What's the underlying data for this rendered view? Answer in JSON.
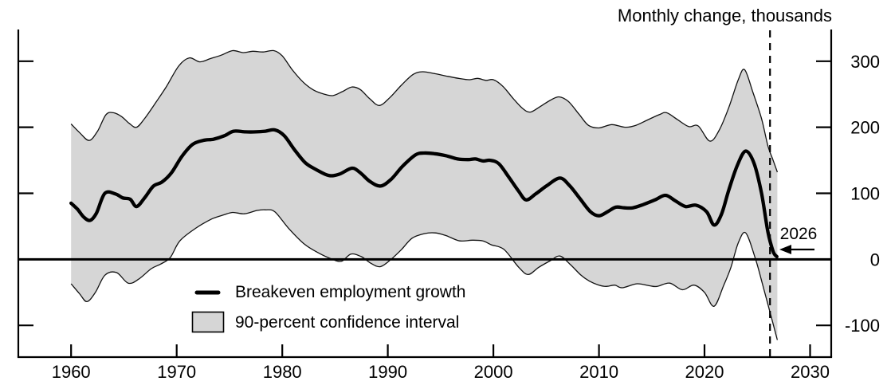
{
  "title": "Monthly change, thousands",
  "legend": {
    "line_label": "Breakeven employment growth",
    "band_label": "90-percent confidence interval"
  },
  "annotation": {
    "label": "2026",
    "arrow_tip_year": 2026.95,
    "arrow_y_value": 15
  },
  "colors": {
    "background": "#ffffff",
    "band_fill": "#d6d6d6",
    "band_edge": "#111111",
    "line": "#000000",
    "axis": "#000000"
  },
  "chart_data": {
    "type": "line",
    "title": "Monthly change, thousands",
    "xlabel": "",
    "ylabel": "Monthly change, thousands",
    "x_ticks": [
      1960,
      1970,
      1980,
      1990,
      2000,
      2010,
      2020,
      2030
    ],
    "y_ticks": [
      300,
      200,
      100,
      0,
      -100
    ],
    "x_range": [
      1955,
      2032
    ],
    "y_range": [
      -148,
      348
    ],
    "grid": false,
    "zero_line": true,
    "dashed_vline_year": 2026.2,
    "legend_position": "inside-bottom-left",
    "series": [
      {
        "name": "Breakeven employment growth",
        "role": "center-line",
        "points": [
          [
            1960.0,
            85
          ],
          [
            1960.6,
            76
          ],
          [
            1961.2,
            64
          ],
          [
            1961.8,
            59
          ],
          [
            1962.4,
            70
          ],
          [
            1963.2,
            100
          ],
          [
            1964.2,
            99
          ],
          [
            1964.9,
            93
          ],
          [
            1965.6,
            91
          ],
          [
            1966.2,
            80
          ],
          [
            1967.0,
            94
          ],
          [
            1967.8,
            111
          ],
          [
            1968.6,
            117
          ],
          [
            1969.5,
            131
          ],
          [
            1970.5,
            156
          ],
          [
            1971.5,
            174
          ],
          [
            1972.5,
            180
          ],
          [
            1973.5,
            182
          ],
          [
            1974.5,
            187
          ],
          [
            1975.4,
            194
          ],
          [
            1976.5,
            193
          ],
          [
            1977.5,
            193
          ],
          [
            1978.4,
            194
          ],
          [
            1979.3,
            196
          ],
          [
            1980.2,
            187
          ],
          [
            1981.2,
            165
          ],
          [
            1982.2,
            146
          ],
          [
            1983.2,
            136
          ],
          [
            1984.4,
            127
          ],
          [
            1985.4,
            129
          ],
          [
            1986.6,
            138
          ],
          [
            1987.4,
            131
          ],
          [
            1988.3,
            118
          ],
          [
            1989.3,
            111
          ],
          [
            1990.3,
            121
          ],
          [
            1991.4,
            141
          ],
          [
            1992.6,
            158
          ],
          [
            1993.4,
            161
          ],
          [
            1994.4,
            160
          ],
          [
            1995.5,
            157
          ],
          [
            1996.6,
            152
          ],
          [
            1997.6,
            151
          ],
          [
            1998.3,
            152
          ],
          [
            1999.0,
            149
          ],
          [
            1999.7,
            150
          ],
          [
            2000.5,
            145
          ],
          [
            2001.4,
            126
          ],
          [
            2002.4,
            103
          ],
          [
            2003.1,
            90
          ],
          [
            2004.0,
            99
          ],
          [
            2005.1,
            112
          ],
          [
            2006.3,
            123
          ],
          [
            2007.2,
            112
          ],
          [
            2008.2,
            92
          ],
          [
            2009.2,
            72
          ],
          [
            2010.0,
            66
          ],
          [
            2010.8,
            72
          ],
          [
            2011.6,
            79
          ],
          [
            2012.4,
            78
          ],
          [
            2013.2,
            78
          ],
          [
            2014.2,
            83
          ],
          [
            2015.3,
            90
          ],
          [
            2016.3,
            97
          ],
          [
            2017.2,
            89
          ],
          [
            2018.2,
            80
          ],
          [
            2019.2,
            82
          ],
          [
            2020.2,
            72
          ],
          [
            2020.9,
            52
          ],
          [
            2021.6,
            68
          ],
          [
            2022.3,
            105
          ],
          [
            2023.1,
            142
          ],
          [
            2023.9,
            164
          ],
          [
            2024.7,
            145
          ],
          [
            2025.4,
            100
          ],
          [
            2026.0,
            42
          ],
          [
            2026.5,
            12
          ],
          [
            2026.85,
            4
          ]
        ]
      },
      {
        "name": "90-percent confidence interval (upper bound)",
        "role": "band-upper",
        "points": [
          [
            1960.0,
            205
          ],
          [
            1960.8,
            192
          ],
          [
            1961.7,
            180
          ],
          [
            1962.5,
            194
          ],
          [
            1963.3,
            219
          ],
          [
            1964.0,
            222
          ],
          [
            1964.8,
            216
          ],
          [
            1965.5,
            206
          ],
          [
            1966.2,
            200
          ],
          [
            1967.0,
            214
          ],
          [
            1968.0,
            237
          ],
          [
            1969.0,
            261
          ],
          [
            1970.2,
            293
          ],
          [
            1971.2,
            305
          ],
          [
            1972.2,
            299
          ],
          [
            1973.2,
            304
          ],
          [
            1974.2,
            309
          ],
          [
            1975.3,
            316
          ],
          [
            1976.3,
            313
          ],
          [
            1977.2,
            315
          ],
          [
            1978.2,
            314
          ],
          [
            1979.2,
            316
          ],
          [
            1980.0,
            308
          ],
          [
            1981.0,
            286
          ],
          [
            1982.0,
            268
          ],
          [
            1983.0,
            256
          ],
          [
            1984.0,
            250
          ],
          [
            1984.8,
            248
          ],
          [
            1985.7,
            254
          ],
          [
            1986.6,
            261
          ],
          [
            1987.4,
            257
          ],
          [
            1988.3,
            243
          ],
          [
            1989.2,
            233
          ],
          [
            1990.2,
            245
          ],
          [
            1991.3,
            264
          ],
          [
            1992.4,
            280
          ],
          [
            1993.3,
            284
          ],
          [
            1994.5,
            281
          ],
          [
            1995.7,
            277
          ],
          [
            1996.7,
            274
          ],
          [
            1997.7,
            272
          ],
          [
            1998.5,
            274
          ],
          [
            1999.3,
            271
          ],
          [
            2000.0,
            272
          ],
          [
            2000.9,
            262
          ],
          [
            2001.9,
            243
          ],
          [
            2002.8,
            228
          ],
          [
            2003.5,
            223
          ],
          [
            2004.4,
            231
          ],
          [
            2005.3,
            240
          ],
          [
            2006.2,
            246
          ],
          [
            2007.1,
            239
          ],
          [
            2008.1,
            220
          ],
          [
            2009.0,
            203
          ],
          [
            2010.0,
            199
          ],
          [
            2011.2,
            204
          ],
          [
            2012.5,
            200
          ],
          [
            2013.5,
            203
          ],
          [
            2014.6,
            211
          ],
          [
            2015.7,
            219
          ],
          [
            2016.4,
            222
          ],
          [
            2017.4,
            212
          ],
          [
            2018.5,
            201
          ],
          [
            2019.4,
            202
          ],
          [
            2020.5,
            179
          ],
          [
            2021.4,
            196
          ],
          [
            2022.3,
            230
          ],
          [
            2023.2,
            272
          ],
          [
            2023.8,
            287
          ],
          [
            2024.6,
            252
          ],
          [
            2025.4,
            213
          ],
          [
            2026.0,
            172
          ],
          [
            2026.5,
            150
          ],
          [
            2026.9,
            132
          ]
        ]
      },
      {
        "name": "90-percent confidence interval (lower bound)",
        "role": "band-lower",
        "points": [
          [
            1960.0,
            -37
          ],
          [
            1960.8,
            -52
          ],
          [
            1961.5,
            -64
          ],
          [
            1962.3,
            -50
          ],
          [
            1963.2,
            -24
          ],
          [
            1964.3,
            -20
          ],
          [
            1965.4,
            -36
          ],
          [
            1966.4,
            -30
          ],
          [
            1967.6,
            -14
          ],
          [
            1968.5,
            -7
          ],
          [
            1969.4,
            3
          ],
          [
            1970.3,
            28
          ],
          [
            1971.8,
            47
          ],
          [
            1973.3,
            61
          ],
          [
            1974.4,
            67
          ],
          [
            1975.3,
            71
          ],
          [
            1976.4,
            69
          ],
          [
            1977.6,
            74
          ],
          [
            1978.4,
            75
          ],
          [
            1979.3,
            72
          ],
          [
            1980.6,
            47
          ],
          [
            1982.1,
            23
          ],
          [
            1983.4,
            10
          ],
          [
            1984.6,
            1
          ],
          [
            1985.6,
            -3
          ],
          [
            1986.5,
            8
          ],
          [
            1987.5,
            4
          ],
          [
            1988.4,
            -6
          ],
          [
            1989.3,
            -11
          ],
          [
            1990.3,
            0
          ],
          [
            1991.3,
            15
          ],
          [
            1992.3,
            32
          ],
          [
            1993.5,
            39
          ],
          [
            1994.5,
            40
          ],
          [
            1995.5,
            36
          ],
          [
            1996.8,
            28
          ],
          [
            1998.0,
            29
          ],
          [
            1999.0,
            28
          ],
          [
            1999.8,
            22
          ],
          [
            2001.0,
            15
          ],
          [
            2002.4,
            -12
          ],
          [
            2003.3,
            -23
          ],
          [
            2004.3,
            -12
          ],
          [
            2005.4,
            -2
          ],
          [
            2006.3,
            5
          ],
          [
            2007.3,
            -8
          ],
          [
            2008.3,
            -24
          ],
          [
            2009.1,
            -33
          ],
          [
            2010.0,
            -39
          ],
          [
            2010.7,
            -41
          ],
          [
            2011.5,
            -39
          ],
          [
            2012.2,
            -43
          ],
          [
            2013.6,
            -37
          ],
          [
            2014.8,
            -40
          ],
          [
            2015.5,
            -41
          ],
          [
            2016.7,
            -36
          ],
          [
            2017.9,
            -46
          ],
          [
            2019.0,
            -39
          ],
          [
            2020.0,
            -50
          ],
          [
            2020.9,
            -71
          ],
          [
            2021.8,
            -40
          ],
          [
            2022.5,
            -12
          ],
          [
            2023.2,
            25
          ],
          [
            2023.9,
            40
          ],
          [
            2024.8,
            2
          ],
          [
            2025.5,
            -38
          ],
          [
            2026.2,
            -80
          ],
          [
            2026.9,
            -122
          ]
        ]
      }
    ]
  }
}
